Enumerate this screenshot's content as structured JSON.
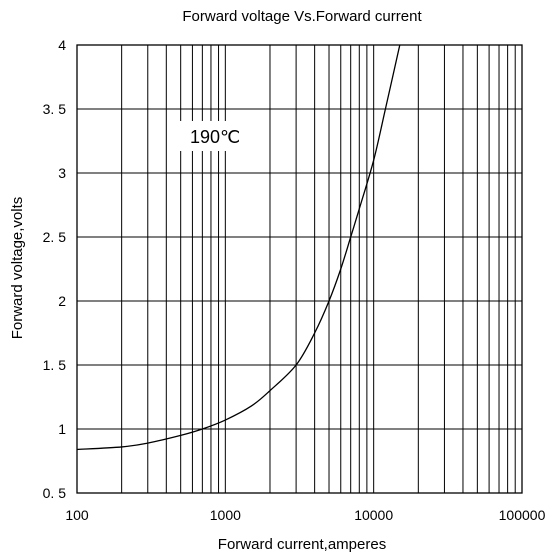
{
  "chart_data": {
    "type": "line",
    "title": "Forward  voltage  Vs.Forward  current",
    "xlabel": "Forward  current,amperes",
    "ylabel": "Forward  voltage,volts",
    "x_scale": "log",
    "xlim": [
      100,
      100000
    ],
    "ylim": [
      0.5,
      4
    ],
    "x_ticks": [
      "100",
      "1000",
      "10000",
      "100000"
    ],
    "y_ticks": [
      "0. 5",
      "1",
      "1. 5",
      "2",
      "2. 5",
      "3",
      "3. 5",
      "4"
    ],
    "grid": true,
    "legend": "none",
    "annotation": "190℃",
    "series": [
      {
        "x": [
          100,
          200,
          300,
          500,
          700,
          1000,
          1500,
          2000,
          3000,
          4000,
          5000,
          6000,
          7000,
          8000,
          10000,
          12000,
          15000
        ],
        "values": [
          0.84,
          0.86,
          0.89,
          0.95,
          1.0,
          1.07,
          1.18,
          1.3,
          1.5,
          1.75,
          2.0,
          2.25,
          2.5,
          2.72,
          3.1,
          3.5,
          4.0
        ]
      }
    ],
    "colors": {
      "line": "#000000",
      "grid": "#000000",
      "background": "#ffffff"
    }
  }
}
